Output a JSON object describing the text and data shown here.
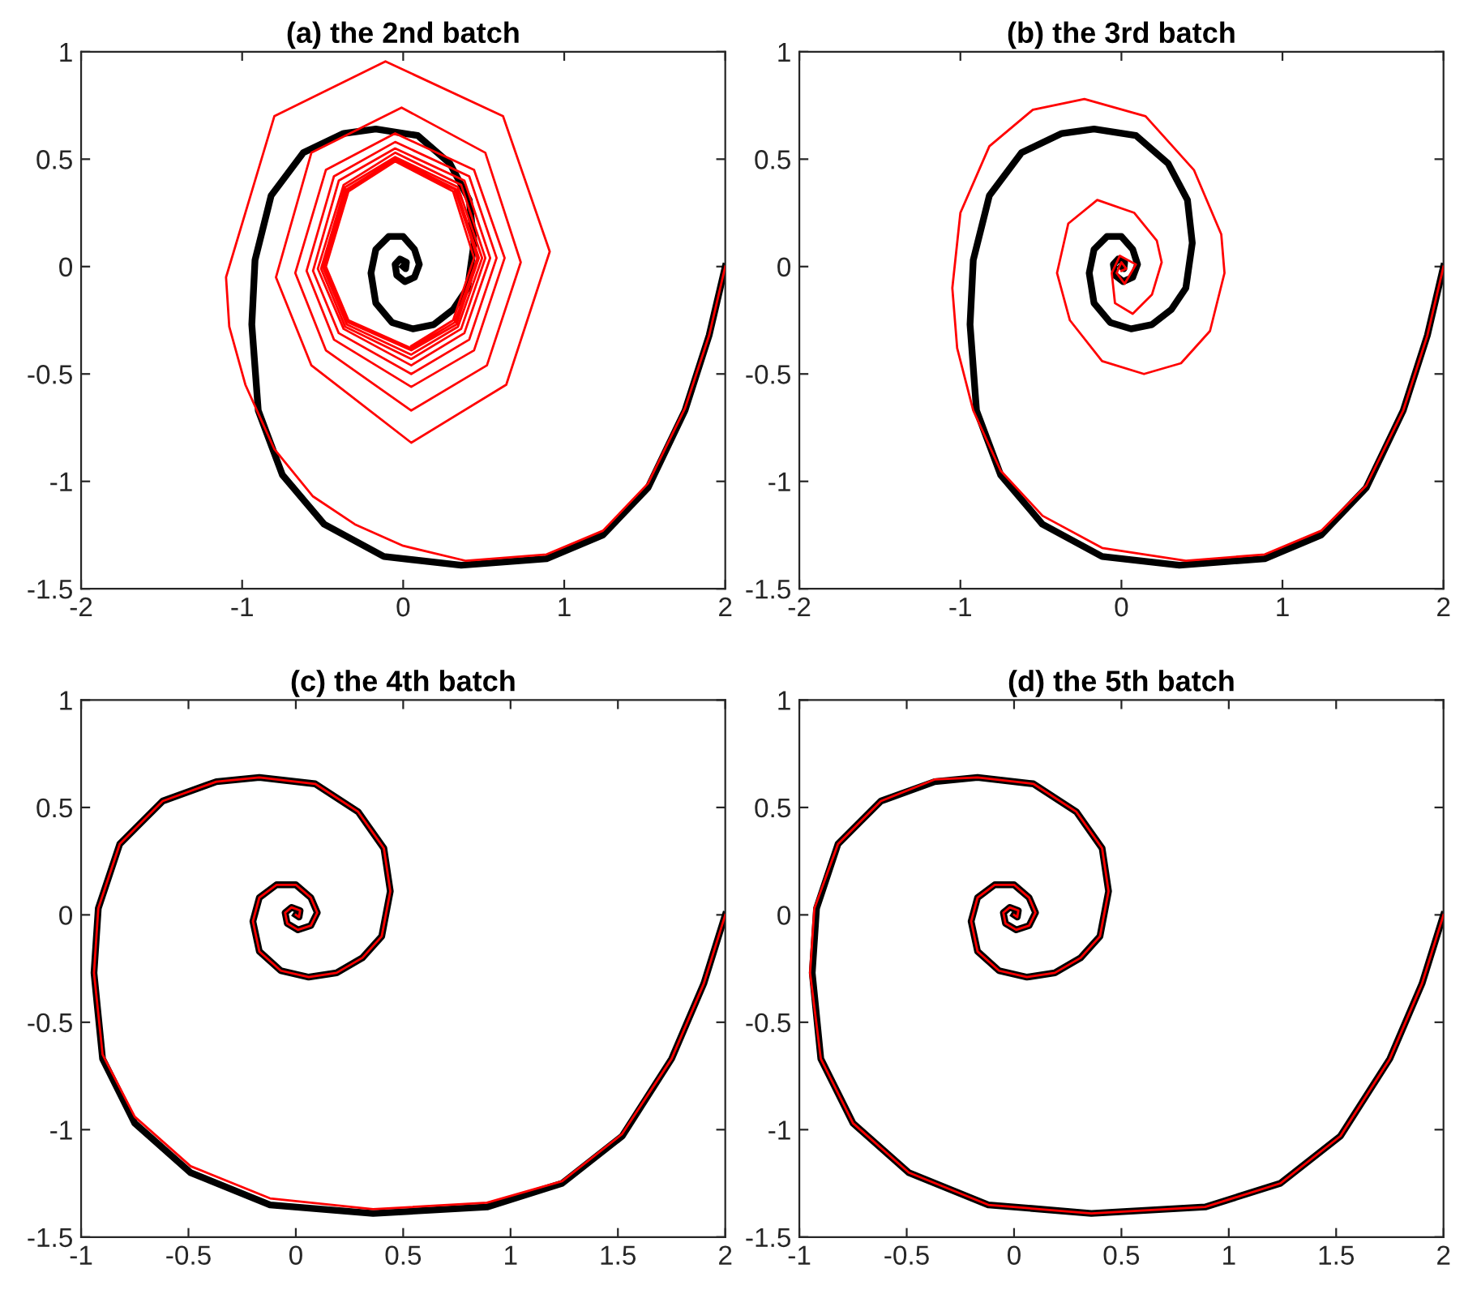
{
  "chart_data": [
    {
      "type": "line",
      "title": "(a) the 2nd batch",
      "xlim": [
        -2,
        2
      ],
      "ylim": [
        -1.5,
        1
      ],
      "xticks": [
        -2,
        -1,
        0,
        1,
        2
      ],
      "yticks": [
        -1.5,
        -1,
        -0.5,
        0,
        0.5,
        1
      ],
      "grid": false,
      "legend": false,
      "marker": "none",
      "line_style": "solid",
      "series": [
        {
          "color": "#000000",
          "x": [
            2.0,
            1.9,
            1.75,
            1.52,
            1.24,
            0.89,
            0.36,
            -0.12,
            -0.49,
            -0.75,
            -0.9,
            -0.94,
            -0.92,
            -0.82,
            -0.62,
            -0.37,
            -0.17,
            0.09,
            0.29,
            0.41,
            0.44,
            0.4,
            0.31,
            0.19,
            0.06,
            -0.07,
            -0.17,
            -0.2,
            -0.17,
            -0.09,
            0.0,
            0.07,
            0.1,
            0.07,
            0.01,
            -0.04,
            -0.05,
            -0.02,
            0.02,
            0.015,
            0.0
          ],
          "values": [
            0,
            -0.32,
            -0.67,
            -1.03,
            -1.25,
            -1.36,
            -1.39,
            -1.35,
            -1.2,
            -0.97,
            -0.67,
            -0.27,
            0.03,
            0.33,
            0.53,
            0.62,
            0.64,
            0.61,
            0.48,
            0.31,
            0.11,
            -0.1,
            -0.2,
            -0.27,
            -0.29,
            -0.26,
            -0.17,
            -0.03,
            0.08,
            0.14,
            0.14,
            0.08,
            0.01,
            -0.05,
            -0.07,
            -0.04,
            0.01,
            0.035,
            0.02,
            -0.01,
            0
          ]
        },
        {
          "color": "#ff0000",
          "x": [
            2.0,
            1.9,
            1.75,
            1.52,
            1.24,
            0.89,
            0.39,
            0.0,
            -0.3,
            -0.56,
            -0.8,
            -0.98,
            -1.08,
            -1.1,
            -0.8,
            -0.11,
            0.62,
            0.91,
            0.64,
            0.05,
            -0.57,
            -0.79,
            -0.57,
            -0.01,
            0.51,
            0.73,
            0.52,
            0.05,
            -0.48,
            -0.67,
            -0.48,
            -0.05,
            0.44,
            0.63,
            0.44,
            0.05,
            -0.43,
            -0.6,
            -0.43,
            -0.05,
            0.41,
            0.58,
            0.41,
            0.05,
            -0.4,
            -0.56,
            -0.4,
            -0.05,
            0.38,
            0.54,
            0.38,
            0.05,
            -0.37,
            -0.53,
            -0.37,
            -0.05,
            0.36,
            0.51,
            0.36,
            0.05,
            -0.36,
            -0.51,
            -0.36,
            -0.05,
            0.34,
            0.49,
            0.34,
            0.05,
            -0.35,
            -0.5,
            -0.35,
            -0.05,
            0.33,
            0.47,
            0.33,
            0.05,
            -0.34,
            -0.49,
            -0.34,
            -0.05,
            0.32,
            0.46,
            0.32,
            0.05,
            -0.34,
            -0.48,
            -0.34,
            -0.05,
            0.31,
            0.44,
            0.31,
            0.05
          ],
          "values": [
            0,
            -0.32,
            -0.66,
            -1.01,
            -1.23,
            -1.34,
            -1.37,
            -1.3,
            -1.2,
            -1.07,
            -0.85,
            -0.55,
            -0.28,
            -0.05,
            0.7,
            0.955,
            0.7,
            0.07,
            -0.55,
            -0.82,
            -0.46,
            -0.05,
            0.53,
            0.74,
            0.53,
            0.02,
            -0.46,
            -0.67,
            -0.39,
            -0.03,
            0.45,
            0.62,
            0.45,
            0.04,
            -0.39,
            -0.56,
            -0.34,
            -0.02,
            0.42,
            0.58,
            0.42,
            0.04,
            -0.34,
            -0.5,
            -0.31,
            -0.02,
            0.4,
            0.55,
            0.4,
            0.04,
            -0.31,
            -0.46,
            -0.29,
            -0.01,
            0.38,
            0.53,
            0.38,
            0.04,
            -0.29,
            -0.43,
            -0.28,
            -0.01,
            0.37,
            0.51,
            0.37,
            0.04,
            -0.28,
            -0.41,
            -0.27,
            0,
            0.36,
            0.5,
            0.36,
            0.04,
            -0.27,
            -0.39,
            -0.26,
            0,
            0.36,
            0.49,
            0.36,
            0.04,
            -0.26,
            -0.38,
            -0.25,
            0,
            0.35,
            0.49,
            0.35,
            0.04,
            -0.25,
            -0.37
          ]
        }
      ]
    },
    {
      "type": "line",
      "title": "(b) the 3rd batch",
      "xlim": [
        -2,
        2
      ],
      "ylim": [
        -1.5,
        1
      ],
      "xticks": [
        -2,
        -1,
        0,
        1,
        2
      ],
      "yticks": [
        -1.5,
        -1,
        -0.5,
        0,
        0.5,
        1
      ],
      "grid": false,
      "legend": false,
      "marker": "none",
      "line_style": "solid",
      "series": [
        {
          "color": "#000000",
          "x": [
            2.0,
            1.9,
            1.75,
            1.52,
            1.24,
            0.89,
            0.36,
            -0.12,
            -0.49,
            -0.75,
            -0.9,
            -0.94,
            -0.92,
            -0.82,
            -0.62,
            -0.37,
            -0.17,
            0.09,
            0.29,
            0.41,
            0.44,
            0.4,
            0.31,
            0.19,
            0.06,
            -0.07,
            -0.17,
            -0.2,
            -0.17,
            -0.09,
            0.0,
            0.07,
            0.1,
            0.07,
            0.01,
            -0.04,
            -0.05,
            -0.02,
            0.02,
            0.015,
            0.0
          ],
          "values": [
            0,
            -0.32,
            -0.67,
            -1.03,
            -1.25,
            -1.36,
            -1.39,
            -1.35,
            -1.2,
            -0.97,
            -0.67,
            -0.27,
            0.03,
            0.33,
            0.53,
            0.62,
            0.64,
            0.61,
            0.48,
            0.31,
            0.11,
            -0.1,
            -0.2,
            -0.27,
            -0.29,
            -0.26,
            -0.17,
            -0.03,
            0.08,
            0.14,
            0.14,
            0.08,
            0.01,
            -0.05,
            -0.07,
            -0.04,
            0.01,
            0.035,
            0.02,
            -0.01,
            0
          ]
        },
        {
          "color": "#ff0000",
          "x": [
            2.0,
            1.9,
            1.75,
            1.52,
            1.24,
            0.89,
            0.4,
            -0.12,
            -0.49,
            -0.75,
            -0.92,
            -1.02,
            -1.05,
            -1.0,
            -0.82,
            -0.55,
            -0.23,
            0.15,
            0.45,
            0.62,
            0.64,
            0.55,
            0.37,
            0.14,
            -0.12,
            -0.32,
            -0.4,
            -0.33,
            -0.15,
            0.08,
            0.22,
            0.25,
            0.19,
            0.07,
            -0.04,
            -0.06,
            -0.01,
            0.09,
            0.02,
            -0.03,
            0.0,
            0.03,
            0.0
          ],
          "values": [
            0,
            -0.32,
            -0.67,
            -1.02,
            -1.23,
            -1.34,
            -1.37,
            -1.31,
            -1.16,
            -0.95,
            -0.67,
            -0.38,
            -0.1,
            0.25,
            0.56,
            0.73,
            0.78,
            0.7,
            0.45,
            0.15,
            -0.03,
            -0.3,
            -0.45,
            -0.5,
            -0.44,
            -0.25,
            -0.03,
            0.2,
            0.31,
            0.25,
            0.12,
            0.02,
            -0.13,
            -0.22,
            -0.17,
            -0.03,
            0.05,
            0.01,
            -0.08,
            -0.03,
            0.02,
            -0.01,
            -0.02
          ]
        }
      ]
    },
    {
      "type": "line",
      "title": "(c) the 4th batch",
      "xlim": [
        -1,
        2
      ],
      "ylim": [
        -1.5,
        1
      ],
      "xticks": [
        -1,
        -0.5,
        0,
        0.5,
        1,
        1.5,
        2
      ],
      "yticks": [
        -1.5,
        -1,
        -0.5,
        0,
        0.5,
        1
      ],
      "grid": false,
      "legend": false,
      "marker": "none",
      "line_style": "solid",
      "series": [
        {
          "color": "#000000",
          "x": [
            2.0,
            1.9,
            1.75,
            1.52,
            1.24,
            0.89,
            0.36,
            -0.12,
            -0.49,
            -0.75,
            -0.9,
            -0.94,
            -0.92,
            -0.82,
            -0.62,
            -0.37,
            -0.17,
            0.09,
            0.29,
            0.41,
            0.44,
            0.4,
            0.31,
            0.19,
            0.06,
            -0.07,
            -0.17,
            -0.2,
            -0.17,
            -0.09,
            0.0,
            0.07,
            0.1,
            0.07,
            0.01,
            -0.04,
            -0.05,
            -0.02,
            0.02,
            0.015,
            0.0
          ],
          "values": [
            0,
            -0.32,
            -0.67,
            -1.03,
            -1.25,
            -1.36,
            -1.39,
            -1.35,
            -1.2,
            -0.97,
            -0.67,
            -0.27,
            0.03,
            0.33,
            0.53,
            0.62,
            0.64,
            0.61,
            0.48,
            0.31,
            0.11,
            -0.1,
            -0.2,
            -0.27,
            -0.29,
            -0.26,
            -0.17,
            -0.03,
            0.08,
            0.14,
            0.14,
            0.08,
            0.01,
            -0.05,
            -0.07,
            -0.04,
            0.01,
            0.035,
            0.02,
            -0.01,
            0
          ]
        },
        {
          "color": "#ff0000",
          "x": [
            2.0,
            1.9,
            1.75,
            1.52,
            1.24,
            0.89,
            0.36,
            -0.12,
            -0.49,
            -0.75,
            -0.9,
            -0.94,
            -0.92,
            -0.82,
            -0.62,
            -0.37,
            -0.17,
            0.09,
            0.29,
            0.41,
            0.44,
            0.4,
            0.31,
            0.19,
            0.06,
            -0.07,
            -0.17,
            -0.2,
            -0.17,
            -0.09,
            0.0,
            0.07,
            0.1,
            0.07,
            0.01,
            -0.04,
            -0.05,
            -0.02,
            0.02,
            0.015,
            0.0
          ],
          "values": [
            0,
            -0.32,
            -0.67,
            -1.02,
            -1.24,
            -1.34,
            -1.37,
            -1.32,
            -1.17,
            -0.94,
            -0.65,
            -0.27,
            0.03,
            0.33,
            0.53,
            0.62,
            0.64,
            0.61,
            0.48,
            0.31,
            0.11,
            -0.1,
            -0.2,
            -0.27,
            -0.29,
            -0.26,
            -0.17,
            -0.03,
            0.08,
            0.14,
            0.14,
            0.08,
            0.01,
            -0.05,
            -0.07,
            -0.04,
            0.01,
            0.035,
            0.02,
            -0.01,
            0
          ]
        }
      ]
    },
    {
      "type": "line",
      "title": "(d) the 5th batch",
      "xlim": [
        -1,
        2
      ],
      "ylim": [
        -1.5,
        1
      ],
      "xticks": [
        -1,
        -0.5,
        0,
        0.5,
        1,
        1.5,
        2
      ],
      "yticks": [
        -1.5,
        -1,
        -0.5,
        0,
        0.5,
        1
      ],
      "grid": false,
      "legend": false,
      "marker": "none",
      "line_style": "solid",
      "series": [
        {
          "color": "#000000",
          "x": [
            2.0,
            1.9,
            1.75,
            1.52,
            1.24,
            0.89,
            0.36,
            -0.12,
            -0.49,
            -0.75,
            -0.9,
            -0.94,
            -0.92,
            -0.82,
            -0.62,
            -0.37,
            -0.17,
            0.09,
            0.29,
            0.41,
            0.44,
            0.4,
            0.31,
            0.19,
            0.06,
            -0.07,
            -0.17,
            -0.2,
            -0.17,
            -0.09,
            0.0,
            0.07,
            0.1,
            0.07,
            0.01,
            -0.04,
            -0.05,
            -0.02,
            0.02,
            0.015,
            0.0
          ],
          "values": [
            0,
            -0.32,
            -0.67,
            -1.03,
            -1.25,
            -1.36,
            -1.39,
            -1.35,
            -1.2,
            -0.97,
            -0.67,
            -0.27,
            0.03,
            0.33,
            0.53,
            0.62,
            0.64,
            0.61,
            0.48,
            0.31,
            0.11,
            -0.1,
            -0.2,
            -0.27,
            -0.29,
            -0.26,
            -0.17,
            -0.03,
            0.08,
            0.14,
            0.14,
            0.08,
            0.01,
            -0.05,
            -0.07,
            -0.04,
            0.01,
            0.035,
            0.02,
            -0.01,
            0
          ]
        },
        {
          "color": "#ff0000",
          "x": [
            2.0,
            1.9,
            1.75,
            1.52,
            1.24,
            0.89,
            0.36,
            -0.12,
            -0.49,
            -0.75,
            -0.9,
            -0.95,
            -0.93,
            -0.82,
            -0.62,
            -0.37,
            -0.17,
            0.09,
            0.29,
            0.41,
            0.44,
            0.4,
            0.31,
            0.19,
            0.06,
            -0.07,
            -0.17,
            -0.2,
            -0.17,
            -0.09,
            0.0,
            0.07,
            0.1,
            0.07,
            0.01,
            -0.04,
            -0.05,
            -0.02,
            0.02,
            0.015,
            0.0
          ],
          "values": [
            0,
            -0.32,
            -0.67,
            -1.03,
            -1.25,
            -1.36,
            -1.39,
            -1.35,
            -1.2,
            -0.97,
            -0.67,
            -0.27,
            0.03,
            0.33,
            0.53,
            0.63,
            0.64,
            0.61,
            0.48,
            0.31,
            0.11,
            -0.1,
            -0.2,
            -0.27,
            -0.29,
            -0.26,
            -0.17,
            -0.03,
            0.08,
            0.14,
            0.14,
            0.08,
            0.01,
            -0.05,
            -0.07,
            -0.04,
            0.01,
            0.035,
            0.02,
            -0.01,
            0
          ]
        }
      ]
    }
  ]
}
